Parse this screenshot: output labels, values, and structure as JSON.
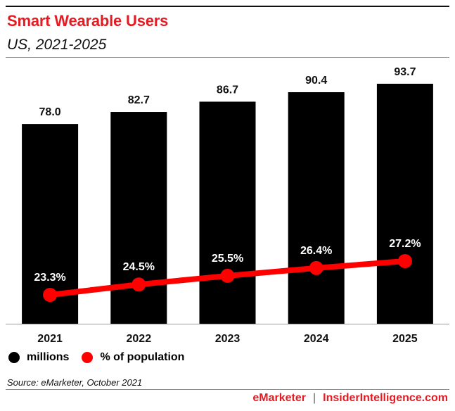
{
  "header": {
    "title": "Smart Wearable Users",
    "subtitle": "US, 2021-2025"
  },
  "chart_data": {
    "type": "bar",
    "categories": [
      "2021",
      "2022",
      "2023",
      "2024",
      "2025"
    ],
    "series": [
      {
        "name": "millions",
        "type": "bar",
        "values": [
          78.0,
          82.7,
          86.7,
          90.4,
          93.7
        ],
        "labels": [
          "78.0",
          "82.7",
          "86.7",
          "90.4",
          "93.7"
        ],
        "color": "#000000"
      },
      {
        "name": "% of population",
        "type": "line",
        "values": [
          23.3,
          24.5,
          25.5,
          26.4,
          27.2
        ],
        "labels": [
          "23.3%",
          "24.5%",
          "25.5%",
          "26.4%",
          "27.2%"
        ],
        "color": "#ff0000"
      }
    ],
    "legend_position": "bottom-left",
    "grid": false
  },
  "legend": {
    "items": [
      {
        "label": "millions",
        "color": "#000000"
      },
      {
        "label": "% of population",
        "color": "#ff0000"
      }
    ]
  },
  "source": "Source: eMarketer, October 2021",
  "footer": {
    "brand": "eMarketer",
    "separator": "|",
    "site": "InsiderIntelligence.com"
  },
  "colors": {
    "accent": "#e31b23",
    "bar": "#000000",
    "line": "#ff0000"
  }
}
